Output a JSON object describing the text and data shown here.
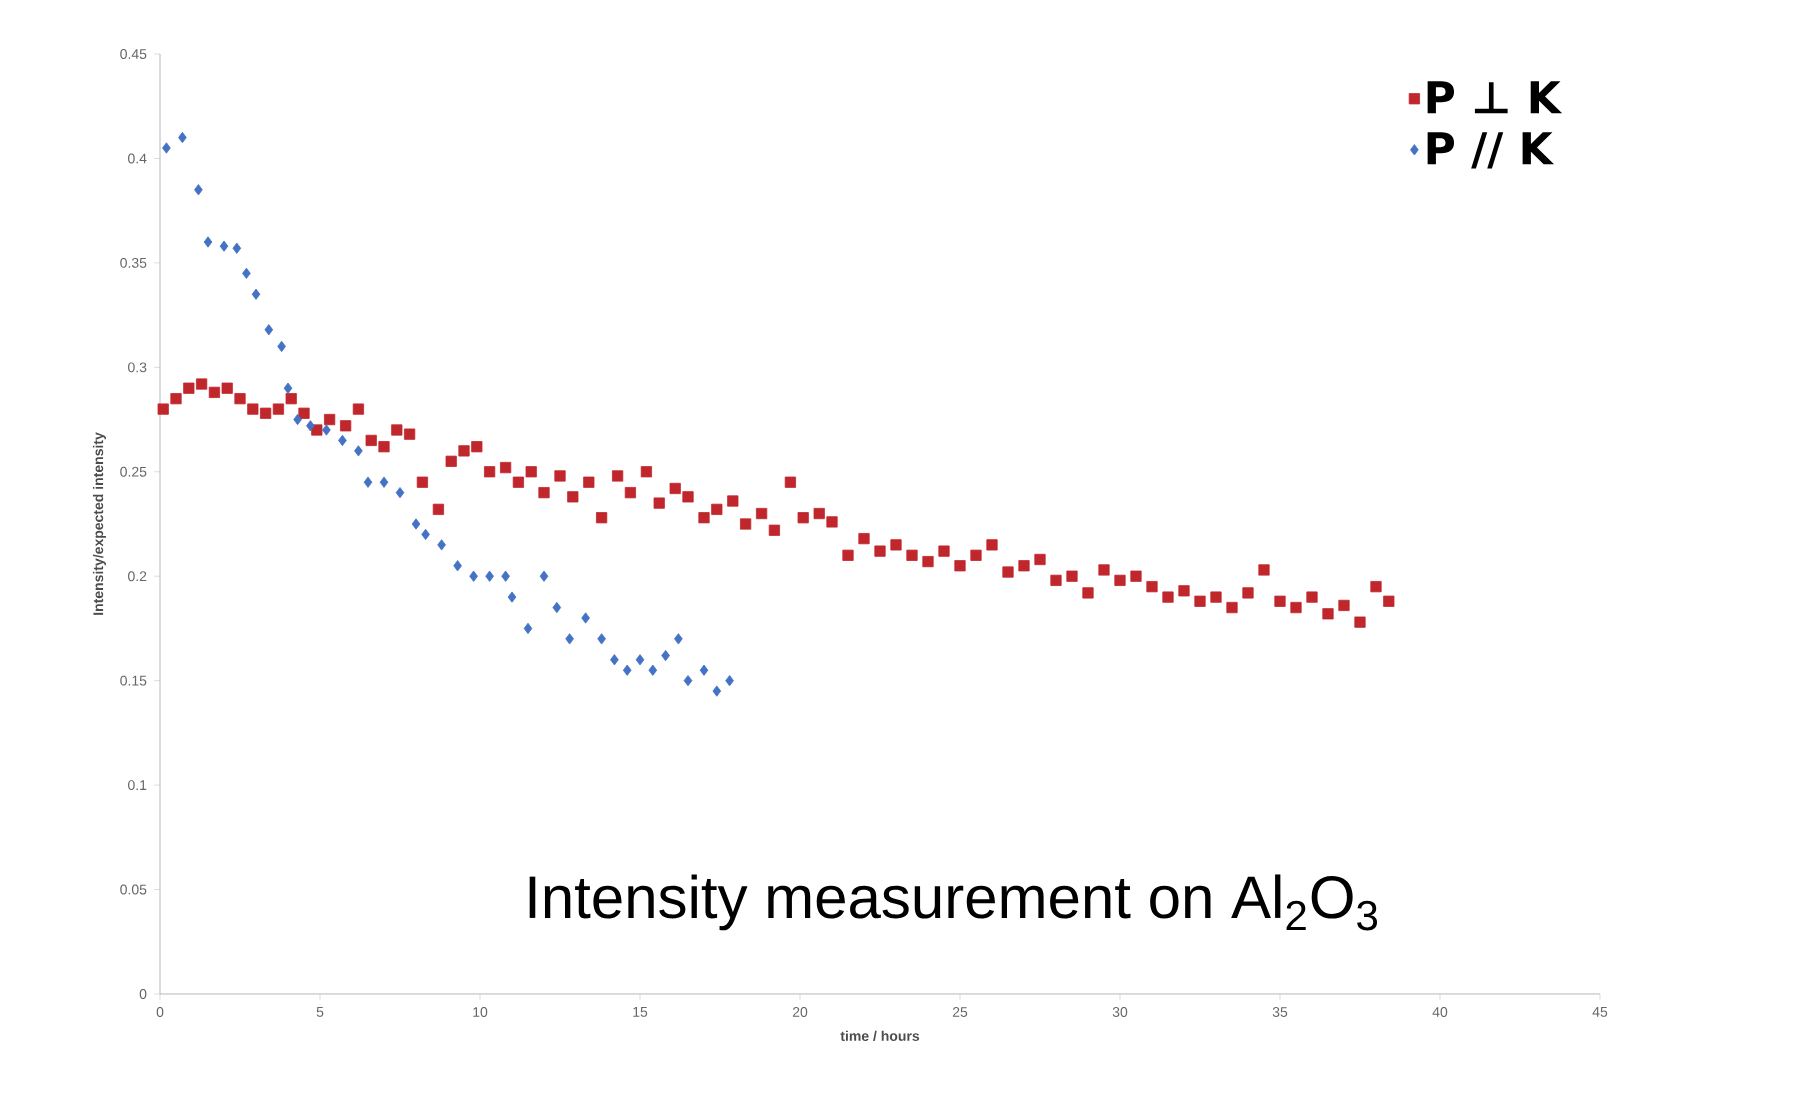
{
  "chart_data": {
    "type": "scatter",
    "xlabel": "time / hours",
    "ylabel": "Intensity/expected intensity",
    "annotations": [
      "Intensity measurement on Al$_{2}$O$_{3}$"
    ],
    "xlim": [
      0,
      45
    ],
    "ylim": [
      0,
      0.45
    ],
    "xticks": [
      0,
      5,
      10,
      15,
      20,
      25,
      30,
      35,
      40,
      45
    ],
    "yticks": [
      0,
      0.05,
      0.1,
      0.15,
      0.2,
      0.25,
      0.3,
      0.35,
      0.4,
      0.45
    ],
    "grid": false,
    "legend": "top right",
    "series": [
      {
        "name": "P ⊥ K",
        "color": "#c0272d",
        "marker": "square",
        "x": [
          0.1,
          0.5,
          0.9,
          1.3,
          1.7,
          2.1,
          2.5,
          2.9,
          3.3,
          3.7,
          4.1,
          4.5,
          4.9,
          5.3,
          5.8,
          6.2,
          6.6,
          7.0,
          7.4,
          7.8,
          8.2,
          8.7,
          9.1,
          9.5,
          9.9,
          10.3,
          10.8,
          11.2,
          11.6,
          12.0,
          12.5,
          12.9,
          13.4,
          13.8,
          14.3,
          14.7,
          15.2,
          15.6,
          16.1,
          16.5,
          17.0,
          17.4,
          17.9,
          18.3,
          18.8,
          19.2,
          19.7,
          20.1,
          20.6,
          21.0,
          21.5,
          22.0,
          22.5,
          23.0,
          23.5,
          24.0,
          24.5,
          25.0,
          25.5,
          26.0,
          26.5,
          27.0,
          27.5,
          28.0,
          28.5,
          29.0,
          29.5,
          30.0,
          30.5,
          31.0,
          31.5,
          32.0,
          32.5,
          33.0,
          33.5,
          34.0,
          34.5,
          35.0,
          35.5,
          36.0,
          36.5,
          37.0,
          37.5,
          38.0,
          38.4
        ],
        "values": [
          0.28,
          0.285,
          0.29,
          0.292,
          0.288,
          0.29,
          0.285,
          0.28,
          0.278,
          0.28,
          0.285,
          0.278,
          0.27,
          0.275,
          0.272,
          0.28,
          0.265,
          0.262,
          0.27,
          0.268,
          0.245,
          0.232,
          0.255,
          0.26,
          0.262,
          0.25,
          0.252,
          0.245,
          0.25,
          0.24,
          0.248,
          0.238,
          0.245,
          0.228,
          0.248,
          0.24,
          0.25,
          0.235,
          0.242,
          0.238,
          0.228,
          0.232,
          0.236,
          0.225,
          0.23,
          0.222,
          0.245,
          0.228,
          0.23,
          0.226,
          0.21,
          0.218,
          0.212,
          0.215,
          0.21,
          0.207,
          0.212,
          0.205,
          0.21,
          0.215,
          0.202,
          0.205,
          0.208,
          0.198,
          0.2,
          0.192,
          0.203,
          0.198,
          0.2,
          0.195,
          0.19,
          0.193,
          0.188,
          0.19,
          0.185,
          0.192,
          0.203,
          0.188,
          0.185,
          0.19,
          0.182,
          0.186,
          0.178,
          0.195,
          0.188
        ]
      },
      {
        "name": "P // K",
        "color": "#4472c4",
        "marker": "diamond",
        "x": [
          0.2,
          0.7,
          1.2,
          1.5,
          2.0,
          2.4,
          2.7,
          3.0,
          3.4,
          3.8,
          4.0,
          4.3,
          4.7,
          5.2,
          5.7,
          6.2,
          6.5,
          7.0,
          7.5,
          8.0,
          8.3,
          8.8,
          9.3,
          9.8,
          10.3,
          10.8,
          11.0,
          11.5,
          12.0,
          12.4,
          12.8,
          13.3,
          13.8,
          14.2,
          14.6,
          15.0,
          15.4,
          15.8,
          16.2,
          16.5,
          17.0,
          17.4,
          17.8
        ],
        "values": [
          0.405,
          0.41,
          0.385,
          0.36,
          0.358,
          0.357,
          0.345,
          0.335,
          0.318,
          0.31,
          0.29,
          0.275,
          0.272,
          0.27,
          0.265,
          0.26,
          0.245,
          0.245,
          0.24,
          0.225,
          0.22,
          0.215,
          0.205,
          0.2,
          0.2,
          0.2,
          0.19,
          0.175,
          0.2,
          0.185,
          0.17,
          0.18,
          0.17,
          0.16,
          0.155,
          0.16,
          0.155,
          0.162,
          0.17,
          0.15,
          0.155,
          0.145,
          0.15
        ]
      }
    ]
  }
}
